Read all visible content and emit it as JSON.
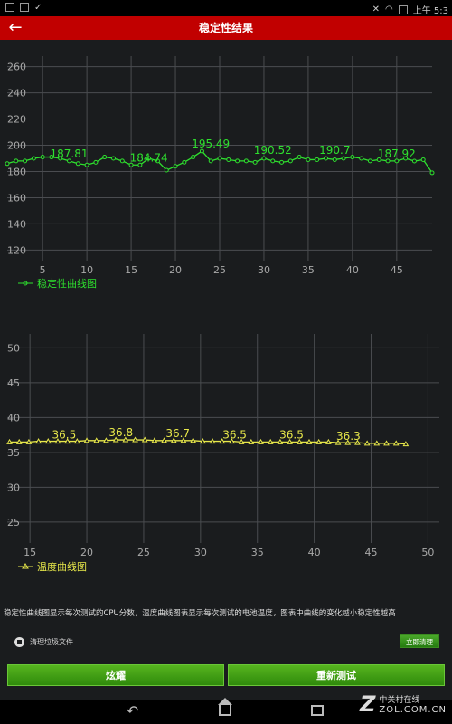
{
  "status_bar": {
    "time": "上午 5:3"
  },
  "header": {
    "title": "稳定性结果",
    "back_icon": "back-arrow-icon"
  },
  "charts": {
    "stability_legend": "稳定性曲线图",
    "temperature_legend": "温度曲线图"
  },
  "chart_data": [
    {
      "type": "line",
      "series": [
        {
          "name": "稳定性曲线图",
          "color": "#2ee02e",
          "values": [
            186,
            188,
            188,
            190,
            191,
            191,
            190,
            188,
            186,
            185,
            187,
            191,
            190,
            188,
            185,
            185,
            190,
            188,
            181,
            184,
            187,
            191,
            195.5,
            188,
            190,
            189,
            188,
            188,
            187,
            190,
            188,
            187,
            188,
            191,
            189,
            189,
            190,
            189,
            190,
            191,
            190,
            188,
            189,
            188,
            188,
            190,
            187.9,
            189,
            179
          ]
        }
      ],
      "x": {
        "min": 1,
        "max": 49,
        "ticks": [
          5,
          10,
          15,
          20,
          25,
          30,
          35,
          40,
          45
        ]
      },
      "ylim": [
        112,
        268
      ],
      "y_ticks": [
        120,
        140,
        160,
        180,
        200,
        220,
        240,
        260
      ],
      "annotations": [
        {
          "x": 8,
          "y": 187.81,
          "text": "187.81"
        },
        {
          "x": 17,
          "y": 184.74,
          "text": "184.74"
        },
        {
          "x": 24,
          "y": 195.49,
          "text": "195.49"
        },
        {
          "x": 31,
          "y": 190.52,
          "text": "190.52"
        },
        {
          "x": 38,
          "y": 190.7,
          "text": "190.7"
        },
        {
          "x": 45,
          "y": 187.92,
          "text": "187.92"
        }
      ],
      "grid": true,
      "legend": "bottom-left"
    },
    {
      "type": "line",
      "series": [
        {
          "name": "温度曲线图",
          "color": "#e8e84a",
          "values": [
            36.5,
            36.5,
            36.5,
            36.6,
            36.6,
            36.6,
            36.6,
            36.6,
            36.7,
            36.7,
            36.7,
            36.8,
            36.8,
            36.8,
            36.8,
            36.7,
            36.7,
            36.7,
            36.7,
            36.7,
            36.6,
            36.6,
            36.6,
            36.6,
            36.5,
            36.5,
            36.5,
            36.5,
            36.5,
            36.5,
            36.5,
            36.5,
            36.5,
            36.5,
            36.4,
            36.4,
            36.4,
            36.3,
            36.3,
            36.3,
            36.3,
            36.2
          ]
        }
      ],
      "x": {
        "min": 13,
        "max": 51,
        "ticks": [
          15,
          20,
          25,
          30,
          35,
          40,
          45,
          50
        ]
      },
      "series_x_start": 13.2,
      "series_x_step": 0.85,
      "ylim": [
        22,
        52
      ],
      "y_ticks": [
        25,
        30,
        35,
        40,
        45,
        50
      ],
      "annotations": [
        {
          "x": 18,
          "y": 36.5,
          "text": "36.5"
        },
        {
          "x": 23,
          "y": 36.8,
          "text": "36.8"
        },
        {
          "x": 28,
          "y": 36.7,
          "text": "36.7"
        },
        {
          "x": 33,
          "y": 36.5,
          "text": "36.5"
        },
        {
          "x": 38,
          "y": 36.5,
          "text": "36.5"
        },
        {
          "x": 43,
          "y": 36.3,
          "text": "36.3"
        }
      ],
      "grid": true,
      "legend": "bottom-left"
    }
  ],
  "note": "稳定性曲线图显示每次测试的CPU分数，温度曲线图表显示每次测试的电池温度，图表中曲线的变化越小稳定性越高",
  "clean": {
    "label": "清理垃圾文件",
    "button": "立即清理"
  },
  "buttons": {
    "left": "炫耀",
    "right": "重新测试"
  },
  "watermark": {
    "cn": "中关村在线",
    "en": "ZOL.COM.CN"
  }
}
